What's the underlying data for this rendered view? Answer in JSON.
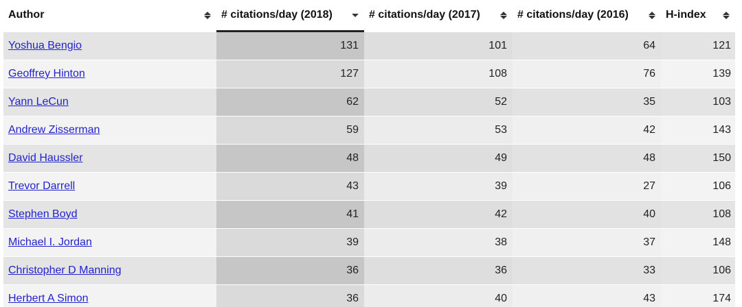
{
  "table": {
    "columns": [
      {
        "label": "Author",
        "sort": "none"
      },
      {
        "label": "# citations/day (2018)",
        "sort": "desc"
      },
      {
        "label": "# citations/day (2017)",
        "sort": "none"
      },
      {
        "label": "# citations/day (2016)",
        "sort": "none"
      },
      {
        "label": "H-index",
        "sort": "none"
      }
    ],
    "rows": [
      {
        "author": "Yoshua Bengio",
        "c2018": "131",
        "c2017": "101",
        "c2016": "64",
        "h": "121"
      },
      {
        "author": "Geoffrey Hinton",
        "c2018": "127",
        "c2017": "108",
        "c2016": "76",
        "h": "139"
      },
      {
        "author": "Yann LeCun",
        "c2018": "62",
        "c2017": "52",
        "c2016": "35",
        "h": "103"
      },
      {
        "author": "Andrew Zisserman",
        "c2018": "59",
        "c2017": "53",
        "c2016": "42",
        "h": "143"
      },
      {
        "author": "David Haussler",
        "c2018": "48",
        "c2017": "49",
        "c2016": "48",
        "h": "150"
      },
      {
        "author": "Trevor Darrell",
        "c2018": "43",
        "c2017": "39",
        "c2016": "27",
        "h": "106"
      },
      {
        "author": "Stephen Boyd",
        "c2018": "41",
        "c2017": "42",
        "c2016": "40",
        "h": "108"
      },
      {
        "author": "Michael I. Jordan",
        "c2018": "39",
        "c2017": "38",
        "c2016": "37",
        "h": "148"
      },
      {
        "author": "Christopher D Manning",
        "c2018": "36",
        "c2017": "36",
        "c2016": "33",
        "h": "106"
      },
      {
        "author": "Herbert A Simon",
        "c2018": "36",
        "c2017": "40",
        "c2016": "43",
        "h": "174"
      }
    ]
  }
}
